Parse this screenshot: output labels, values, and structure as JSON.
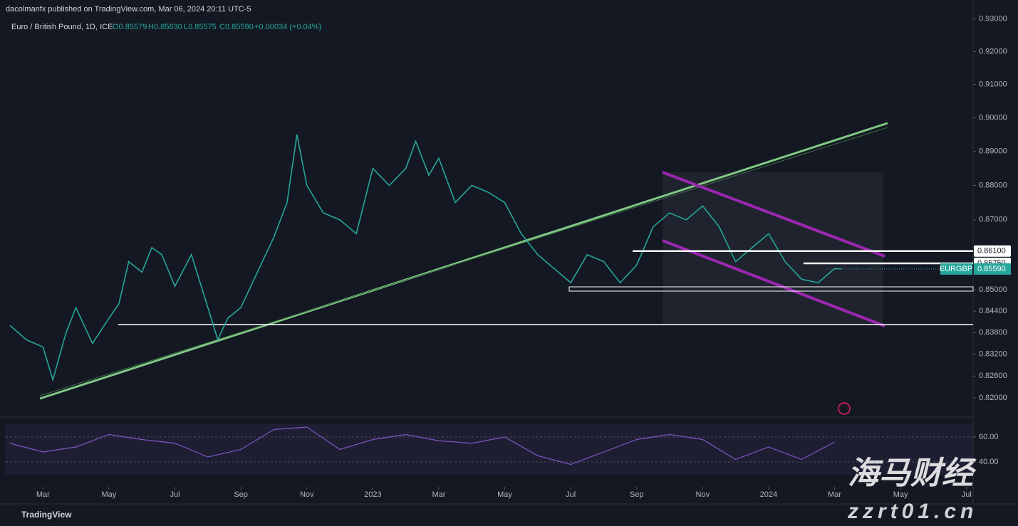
{
  "header": {
    "published": "dacolmanfx published on TradingView.com, Mar 06, 2024 20:11 UTC-5",
    "symbol": "Euro / British Pound, 1D, ICE",
    "ohlc": [
      "O0.85579",
      "H0.85630",
      "L0.85575",
      "C0.85590",
      "+0.00034 (+0.04%)"
    ]
  },
  "chart_data": [
    {
      "type": "line",
      "log_scale": true,
      "color": "#26a69a",
      "x": [
        1.0,
        1.5,
        2.0,
        2.3,
        2.7,
        3.0,
        3.5,
        4.0,
        4.3,
        4.6,
        5.0,
        5.3,
        5.6,
        6.0,
        6.5,
        7.0,
        7.3,
        7.6,
        8.0,
        8.5,
        9.0,
        9.4,
        9.7,
        10.0,
        10.5,
        11.0,
        11.5,
        12.0,
        12.5,
        13.0,
        13.3,
        13.7,
        14.0,
        14.5,
        15.0,
        15.5,
        16.0,
        16.5,
        17.0,
        17.5,
        18.0,
        18.5,
        19.0,
        19.5,
        20.0,
        20.5,
        21.0,
        21.5,
        22.0,
        22.5,
        23.0,
        23.5,
        24.0,
        24.5,
        25.0,
        25.5,
        26.0,
        26.2
      ],
      "values": [
        0.84,
        0.836,
        0.834,
        0.825,
        0.838,
        0.845,
        0.835,
        0.842,
        0.846,
        0.858,
        0.855,
        0.862,
        0.86,
        0.851,
        0.86,
        0.845,
        0.836,
        0.842,
        0.845,
        0.855,
        0.865,
        0.875,
        0.895,
        0.88,
        0.872,
        0.87,
        0.866,
        0.885,
        0.88,
        0.885,
        0.893,
        0.883,
        0.888,
        0.875,
        0.88,
        0.878,
        0.875,
        0.866,
        0.86,
        0.856,
        0.852,
        0.86,
        0.858,
        0.852,
        0.857,
        0.868,
        0.872,
        0.87,
        0.874,
        0.868,
        0.858,
        0.862,
        0.866,
        0.858,
        0.853,
        0.852,
        0.856,
        0.8559
      ],
      "xlim": [
        0.87,
        30.2
      ],
      "xticks": [
        {
          "value": 2,
          "label": "Mar"
        },
        {
          "value": 4,
          "label": "May"
        },
        {
          "value": 6,
          "label": "Jul"
        },
        {
          "value": 8,
          "label": "Sep"
        },
        {
          "value": 10,
          "label": "Nov"
        },
        {
          "value": 12,
          "label": "2023"
        },
        {
          "value": 14,
          "label": "Mar"
        },
        {
          "value": 16,
          "label": "May"
        },
        {
          "value": 18,
          "label": "Jul"
        },
        {
          "value": 20,
          "label": "Sep"
        },
        {
          "value": 22,
          "label": "Nov"
        },
        {
          "value": 24,
          "label": "2024"
        },
        {
          "value": 26,
          "label": "Mar"
        },
        {
          "value": 28,
          "label": "May"
        },
        {
          "value": 30,
          "label": "Jul"
        }
      ],
      "ylim": [
        0.815,
        0.9326
      ],
      "yticks": [
        {
          "value": 0.93,
          "label": "0.93000"
        },
        {
          "value": 0.92,
          "label": "0.92000"
        },
        {
          "value": 0.91,
          "label": "0.91000"
        },
        {
          "value": 0.9,
          "label": "0.90000"
        },
        {
          "value": 0.89,
          "label": "0.89000"
        },
        {
          "value": 0.88,
          "label": "0.88000"
        },
        {
          "value": 0.87,
          "label": "0.87000"
        },
        {
          "value": 0.85,
          "label": "0.85000"
        },
        {
          "value": 0.844,
          "label": "0.84400"
        },
        {
          "value": 0.838,
          "label": "0.83800"
        },
        {
          "value": 0.832,
          "label": "0.83200"
        },
        {
          "value": 0.826,
          "label": "0.82600"
        },
        {
          "value": 0.82,
          "label": "0.82000"
        }
      ],
      "levels": [
        {
          "value": 0.861,
          "label": "0.86100"
        },
        {
          "value": 0.8575,
          "label": "0.85750"
        }
      ],
      "last_price": {
        "name": "EURGBP",
        "value": 0.8559,
        "label": "0.85590",
        "color": "#26a69a"
      }
    },
    {
      "type": "line",
      "color": "#7e57c2",
      "x": [
        1,
        2,
        3,
        4,
        5,
        6,
        7,
        8,
        9,
        10,
        11,
        12,
        13,
        14,
        15,
        16,
        17,
        18,
        19,
        20,
        21,
        22,
        23,
        24,
        25,
        26
      ],
      "values": [
        55,
        48,
        52,
        62,
        58,
        55,
        44,
        50,
        66,
        68,
        50,
        58,
        62,
        57,
        55,
        60,
        45,
        38,
        48,
        58,
        62,
        58,
        42,
        52,
        42,
        56
      ],
      "xlim": [
        0.87,
        30.2
      ],
      "ylim": [
        22.3,
        73.7
      ],
      "yticks": [
        {
          "value": 60,
          "label": "60.00"
        },
        {
          "value": 40,
          "label": "40.00"
        }
      ]
    }
  ],
  "footer": {
    "brand": "TradingView"
  },
  "watermark": {
    "cn": "海马财经",
    "url": "zzrt01.cn"
  }
}
